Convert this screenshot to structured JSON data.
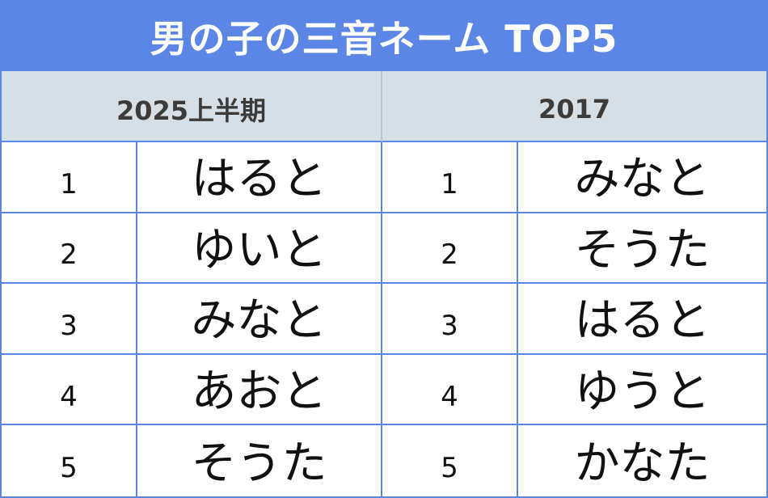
{
  "title": "男の子の三音ネーム TOP5",
  "columns": [
    {
      "header": "2025上半期",
      "rows": [
        {
          "rank": "1",
          "name": "はると"
        },
        {
          "rank": "2",
          "name": "ゆいと"
        },
        {
          "rank": "3",
          "name": "みなと"
        },
        {
          "rank": "4",
          "name": "あおと"
        },
        {
          "rank": "5",
          "name": "そうた"
        }
      ]
    },
    {
      "header": "2017",
      "rows": [
        {
          "rank": "1",
          "name": "みなと"
        },
        {
          "rank": "2",
          "name": "そうた"
        },
        {
          "rank": "3",
          "name": "はると"
        },
        {
          "rank": "4",
          "name": "ゆうと"
        },
        {
          "rank": "5",
          "name": "かなた"
        }
      ]
    }
  ],
  "colors": {
    "title_bg": "#5b86e5",
    "header_bg": "#d5dfe5",
    "border": "#5b86e5"
  }
}
